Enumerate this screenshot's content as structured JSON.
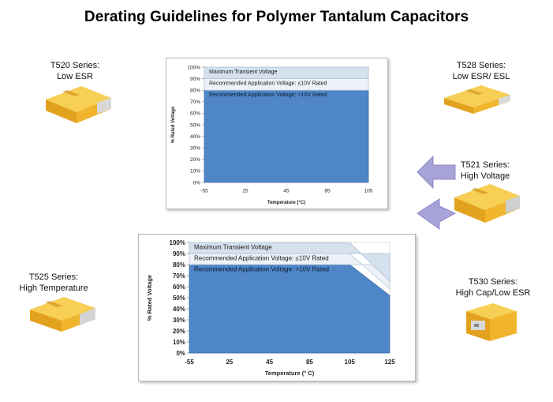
{
  "title": "Derating Guidelines for Polymer Tantalum Capacitors",
  "series": {
    "t520": {
      "name": "T520  Series:",
      "desc": "Low ESR"
    },
    "t528": {
      "name": "T528  Series:",
      "desc": "Low ESR/  ESL"
    },
    "t521": {
      "name": "T521  Series:",
      "desc": "High  Voltage"
    },
    "t525": {
      "name": "T525  Series:",
      "desc": "High  Temperature"
    },
    "t530": {
      "name": "T530  Series:",
      "desc": "High  Cap/Low  ESR"
    }
  },
  "colors": {
    "chip": "#f2b62a",
    "band_top": "#d6e1ee",
    "band_mid": "#eef2f8",
    "band_low": "#4f86c8",
    "arrow": "#a7a3d8"
  },
  "chart_data": [
    {
      "type": "area",
      "xlabel": "Temperature (°C)",
      "ylabel": "% Rated Voltage",
      "x_ticks": [
        "-55",
        "25",
        "45",
        "85",
        "105"
      ],
      "y_ticks": [
        "0%",
        "10%",
        "20%",
        "30%",
        "40%",
        "50%",
        "60%",
        "70%",
        "80%",
        "90%",
        "100%"
      ],
      "ylim": [
        0,
        100
      ],
      "bands": [
        {
          "label": "Maximum  Transient  Voltage",
          "lower": 90,
          "upper": [
            100,
            100,
            100,
            100,
            100
          ]
        },
        {
          "label": "Recommended   Application  Voltage:  ≤10V  Rated",
          "lower": 80,
          "upper": [
            90,
            90,
            90,
            90,
            90
          ]
        },
        {
          "label": "Recommended   Application  Voltage:  >10V  Rated",
          "lower": 0,
          "upper": [
            80,
            80,
            80,
            80,
            80
          ]
        }
      ]
    },
    {
      "type": "area",
      "xlabel": "Temperature (° C)",
      "ylabel": "% Rated Voltage",
      "x_ticks": [
        "-55",
        "25",
        "45",
        "85",
        "105",
        "125"
      ],
      "y_ticks": [
        "0%",
        "10%",
        "20%",
        "30%",
        "40%",
        "50%",
        "60%",
        "70%",
        "80%",
        "90%",
        "100%"
      ],
      "ylim": [
        0,
        100
      ],
      "bands": [
        {
          "label": "Maximum  Transient  Voltage",
          "lower": 90,
          "upper": [
            100,
            100,
            100,
            100,
            100,
            65
          ]
        },
        {
          "label": "Recommended   Application  Voltage:  ≤10V  Rated",
          "lower": 80,
          "upper": [
            90,
            90,
            90,
            90,
            90,
            58
          ]
        },
        {
          "label": "Recommended   Application  Voltage:  >10V  Rated",
          "lower": 0,
          "upper": [
            80,
            80,
            80,
            80,
            80,
            52
          ]
        }
      ]
    }
  ]
}
